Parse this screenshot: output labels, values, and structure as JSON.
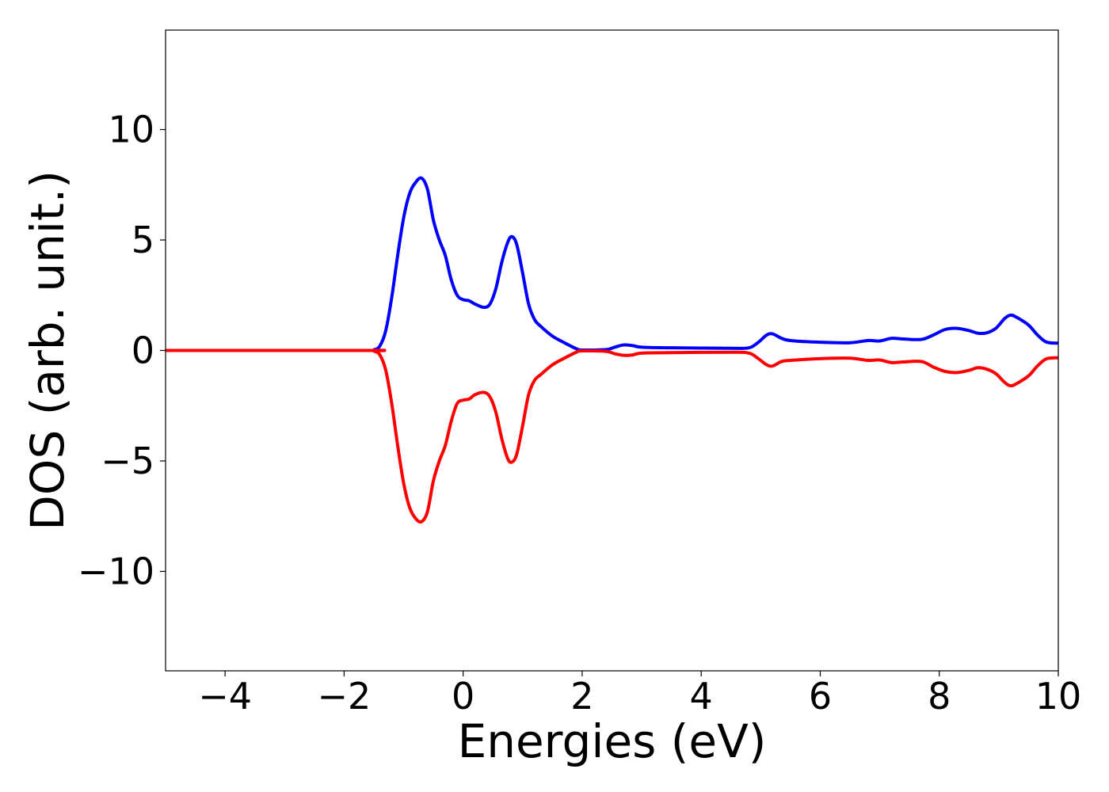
{
  "chart_data": {
    "type": "line",
    "xlabel": "Energies (eV)",
    "ylabel": "DOS (arb. unit.)",
    "xlim": [
      -5,
      10
    ],
    "ylim": [
      -14.5,
      14.5
    ],
    "grid": false,
    "x_ticks": [
      -4,
      -2,
      0,
      2,
      4,
      6,
      8,
      10
    ],
    "x_tick_labels": [
      "−4",
      "−2",
      "0",
      "2",
      "4",
      "6",
      "8",
      "10"
    ],
    "y_ticks": [
      -10,
      -5,
      0,
      5,
      10
    ],
    "y_tick_labels": [
      "−10",
      "−5",
      "0",
      "5",
      "10"
    ],
    "series": [
      {
        "color": "#0000ff",
        "points": [
          [
            -5,
            0
          ],
          [
            -1.6,
            0
          ],
          [
            -1.5,
            0.03
          ],
          [
            -1.4,
            0.2
          ],
          [
            -1.3,
            0.9
          ],
          [
            -1.2,
            2.4
          ],
          [
            -1.1,
            4.3
          ],
          [
            -1.0,
            6.0
          ],
          [
            -0.9,
            7.1
          ],
          [
            -0.8,
            7.6
          ],
          [
            -0.7,
            7.8
          ],
          [
            -0.6,
            7.3
          ],
          [
            -0.5,
            5.9
          ],
          [
            -0.4,
            5.0
          ],
          [
            -0.3,
            4.3
          ],
          [
            -0.2,
            3.2
          ],
          [
            -0.1,
            2.5
          ],
          [
            0.0,
            2.3
          ],
          [
            0.1,
            2.25
          ],
          [
            0.2,
            2.1
          ],
          [
            0.35,
            1.95
          ],
          [
            0.45,
            2.1
          ],
          [
            0.55,
            2.8
          ],
          [
            0.65,
            4.0
          ],
          [
            0.75,
            4.9
          ],
          [
            0.82,
            5.15
          ],
          [
            0.9,
            4.8
          ],
          [
            1.0,
            3.5
          ],
          [
            1.1,
            2.1
          ],
          [
            1.2,
            1.4
          ],
          [
            1.3,
            1.1
          ],
          [
            1.5,
            0.65
          ],
          [
            1.7,
            0.35
          ],
          [
            1.9,
            0.08
          ],
          [
            2.0,
            0.02
          ],
          [
            2.4,
            0.04
          ],
          [
            2.55,
            0.15
          ],
          [
            2.7,
            0.25
          ],
          [
            2.85,
            0.22
          ],
          [
            3.0,
            0.15
          ],
          [
            3.5,
            0.12
          ],
          [
            4.5,
            0.1
          ],
          [
            4.8,
            0.12
          ],
          [
            4.95,
            0.35
          ],
          [
            5.1,
            0.7
          ],
          [
            5.2,
            0.75
          ],
          [
            5.35,
            0.55
          ],
          [
            5.5,
            0.45
          ],
          [
            6.0,
            0.37
          ],
          [
            6.5,
            0.35
          ],
          [
            6.8,
            0.45
          ],
          [
            7.0,
            0.43
          ],
          [
            7.2,
            0.55
          ],
          [
            7.4,
            0.52
          ],
          [
            7.7,
            0.5
          ],
          [
            7.9,
            0.7
          ],
          [
            8.1,
            0.95
          ],
          [
            8.3,
            1.0
          ],
          [
            8.5,
            0.9
          ],
          [
            8.65,
            0.78
          ],
          [
            8.8,
            0.8
          ],
          [
            8.95,
            1.0
          ],
          [
            9.1,
            1.45
          ],
          [
            9.2,
            1.6
          ],
          [
            9.3,
            1.5
          ],
          [
            9.5,
            1.15
          ],
          [
            9.65,
            0.7
          ],
          [
            9.8,
            0.38
          ],
          [
            10,
            0.33
          ]
        ]
      },
      {
        "color": "#ff0000",
        "points": [
          [
            -5,
            0
          ],
          [
            -1.6,
            0
          ],
          [
            -1.5,
            -0.03
          ],
          [
            -1.4,
            -0.2
          ],
          [
            -1.3,
            -0.9
          ],
          [
            -1.2,
            -2.4
          ],
          [
            -1.1,
            -4.3
          ],
          [
            -1.0,
            -6.0
          ],
          [
            -0.9,
            -7.1
          ],
          [
            -0.8,
            -7.6
          ],
          [
            -0.7,
            -7.75
          ],
          [
            -0.6,
            -7.3
          ],
          [
            -0.5,
            -5.9
          ],
          [
            -0.4,
            -5.0
          ],
          [
            -0.3,
            -4.3
          ],
          [
            -0.2,
            -3.2
          ],
          [
            -0.1,
            -2.4
          ],
          [
            0.0,
            -2.25
          ],
          [
            0.1,
            -2.2
          ],
          [
            0.2,
            -2.0
          ],
          [
            0.35,
            -1.9
          ],
          [
            0.45,
            -2.1
          ],
          [
            0.55,
            -2.8
          ],
          [
            0.65,
            -4.0
          ],
          [
            0.75,
            -4.9
          ],
          [
            0.82,
            -5.05
          ],
          [
            0.9,
            -4.7
          ],
          [
            1.0,
            -3.4
          ],
          [
            1.1,
            -2.0
          ],
          [
            1.2,
            -1.35
          ],
          [
            1.3,
            -1.1
          ],
          [
            1.5,
            -0.65
          ],
          [
            1.7,
            -0.35
          ],
          [
            1.9,
            -0.08
          ],
          [
            2.0,
            -0.02
          ],
          [
            2.4,
            -0.04
          ],
          [
            2.55,
            -0.15
          ],
          [
            2.7,
            -0.22
          ],
          [
            2.85,
            -0.2
          ],
          [
            3.0,
            -0.12
          ],
          [
            3.5,
            -0.1
          ],
          [
            4.5,
            -0.08
          ],
          [
            4.8,
            -0.12
          ],
          [
            4.95,
            -0.35
          ],
          [
            5.1,
            -0.65
          ],
          [
            5.2,
            -0.7
          ],
          [
            5.35,
            -0.5
          ],
          [
            5.5,
            -0.45
          ],
          [
            6.0,
            -0.37
          ],
          [
            6.5,
            -0.35
          ],
          [
            6.8,
            -0.45
          ],
          [
            7.0,
            -0.43
          ],
          [
            7.2,
            -0.55
          ],
          [
            7.4,
            -0.52
          ],
          [
            7.7,
            -0.5
          ],
          [
            7.9,
            -0.75
          ],
          [
            8.1,
            -0.95
          ],
          [
            8.3,
            -1.0
          ],
          [
            8.5,
            -0.9
          ],
          [
            8.65,
            -0.78
          ],
          [
            8.8,
            -0.85
          ],
          [
            8.95,
            -1.05
          ],
          [
            9.1,
            -1.45
          ],
          [
            9.2,
            -1.6
          ],
          [
            9.3,
            -1.5
          ],
          [
            9.5,
            -1.15
          ],
          [
            9.65,
            -0.7
          ],
          [
            9.8,
            -0.38
          ],
          [
            10,
            -0.33
          ]
        ]
      }
    ]
  }
}
